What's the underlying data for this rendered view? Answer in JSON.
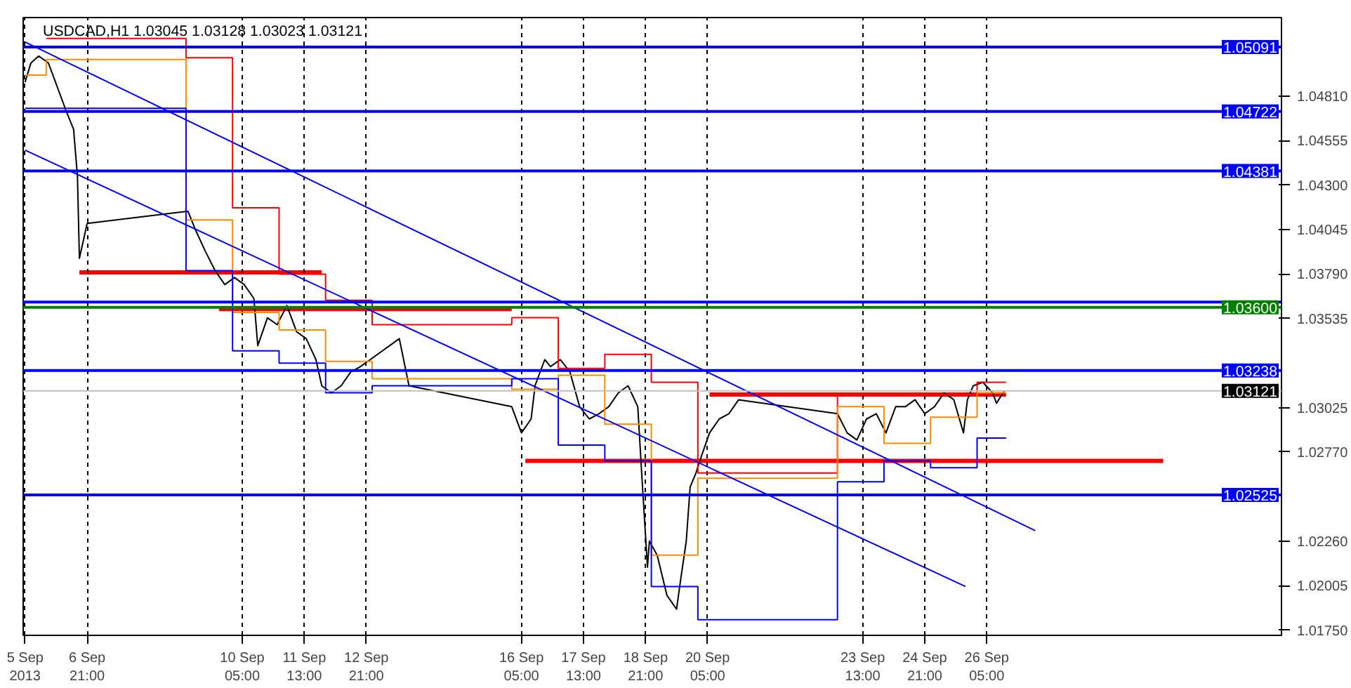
{
  "chart_data": {
    "type": "line",
    "title": "USDCAD,H1  1.03045 1.03128 1.03023 1.03121",
    "xlim": [
      "2013-09-05T12:00",
      "2013-10-02T13:00"
    ],
    "ylim": [
      1.0172,
      1.0526
    ],
    "xticks": [
      {
        "value": "2013-09-05T13:00",
        "label": "5 Sep 2013"
      },
      {
        "value": "2013-09-06T21:00",
        "label": "6 Sep 21:00"
      },
      {
        "value": "2013-09-10T05:00",
        "label": "10 Sep 05:00"
      },
      {
        "value": "2013-09-11T13:00",
        "label": "11 Sep 13:00"
      },
      {
        "value": "2013-09-12T21:00",
        "label": "12 Sep 21:00"
      },
      {
        "value": "2013-09-16T05:00",
        "label": "16 Sep 05:00"
      },
      {
        "value": "2013-09-17T13:00",
        "label": "17 Sep 13:00"
      },
      {
        "value": "2013-09-18T21:00",
        "label": "18 Sep 21:00"
      },
      {
        "value": "2013-09-20T05:00",
        "label": "20 Sep 05:00"
      },
      {
        "value": "2013-09-23T13:00",
        "label": "23 Sep 13:00"
      },
      {
        "value": "2013-09-24T21:00",
        "label": "24 Sep 21:00"
      },
      {
        "value": "2013-09-26T05:00",
        "label": "26 Sep 05:00"
      }
    ],
    "yticks": [
      {
        "value": 1.0175,
        "label": "1.01750"
      },
      1.02005,
      {
        "value": 1.0226,
        "label": "1.02260"
      },
      {
        "value": 1.0277,
        "label": "1.02770"
      },
      1.03025,
      1.03535,
      {
        "value": 1.0379,
        "label": "1.03790"
      },
      1.04045,
      {
        "value": 1.043,
        "label": "1.04300"
      },
      1.04555,
      {
        "value": 1.0481,
        "label": "1.04810"
      }
    ],
    "grid": "x",
    "series": [
      {
        "color": "#000000",
        "x": [
          "2013-09-05T13:00",
          "2013-09-05T16:00",
          "2013-09-05T20:00",
          "2013-09-06T01:00",
          "2013-09-06T06:00",
          "2013-09-06T10:00",
          "2013-09-06T14:00",
          "2013-09-06T16:00",
          "2013-09-06T17:00",
          "2013-09-06T21:00",
          "2013-09-09T01:00",
          "2013-09-09T05:00",
          "2013-09-09T10:00",
          "2013-09-09T15:00",
          "2013-09-09T20:00",
          "2013-09-10T01:00",
          "2013-09-10T06:00",
          "2013-09-10T11:00",
          "2013-09-10T13:00",
          "2013-09-10T18:00",
          "2013-09-10T23:00",
          "2013-09-11T04:00",
          "2013-09-11T09:00",
          "2013-09-11T14:00",
          "2013-09-11T19:00",
          "2013-09-11T22:00",
          "2013-09-12T03:00",
          "2013-09-12T08:00",
          "2013-09-12T13:00",
          "2013-09-12T18:00",
          "2013-09-12T23:00",
          "2013-09-13T04:00",
          "2013-09-13T09:00",
          "2013-09-13T14:00",
          "2013-09-13T19:00",
          "2013-09-16T00:00",
          "2013-09-16T05:00",
          "2013-09-16T10:00",
          "2013-09-16T12:00",
          "2013-09-16T17:00",
          "2013-09-16T20:00",
          "2013-09-17T01:00",
          "2013-09-17T06:00",
          "2013-09-17T11:00",
          "2013-09-17T16:00",
          "2013-09-17T21:00",
          "2013-09-18T02:00",
          "2013-09-18T07:00",
          "2013-09-18T12:00",
          "2013-09-18T17:00",
          "2013-09-18T19:00",
          "2013-09-18T22:00",
          "2013-09-18T23:00",
          "2013-09-19T03:00",
          "2013-09-19T08:00",
          "2013-09-19T13:00",
          "2013-09-19T15:00",
          "2013-09-19T18:00",
          "2013-09-19T20:00",
          "2013-09-19T23:00",
          "2013-09-20T01:00",
          "2013-09-20T06:00",
          "2013-09-20T11:00",
          "2013-09-20T16:00",
          "2013-09-20T21:00",
          "2013-09-23T00:00",
          "2013-09-23T05:00",
          "2013-09-23T10:00",
          "2013-09-23T15:00",
          "2013-09-23T20:00",
          "2013-09-24T01:00",
          "2013-09-24T06:00",
          "2013-09-24T11:00",
          "2013-09-24T16:00",
          "2013-09-24T21:00",
          "2013-09-25T02:00",
          "2013-09-25T07:00",
          "2013-09-25T12:00",
          "2013-09-25T17:00",
          "2013-09-25T19:00",
          "2013-09-25T22:00",
          "2013-09-26T03:00",
          "2013-09-26T08:00",
          "2013-09-26T10:00",
          "2013-09-26T14:00"
        ],
        "values": [
          1.0489,
          1.05,
          1.0504,
          1.05,
          1.0485,
          1.0473,
          1.0462,
          1.0435,
          1.0388,
          1.0408,
          1.0415,
          1.0404,
          1.0392,
          1.0381,
          1.0373,
          1.0377,
          1.0373,
          1.0365,
          1.0338,
          1.0354,
          1.035,
          1.0361,
          1.0346,
          1.0342,
          1.033,
          1.0315,
          1.0311,
          1.0315,
          1.0323,
          1.0326,
          1.033,
          1.0334,
          1.0338,
          1.0342,
          1.0315,
          1.0303,
          1.0288,
          1.0296,
          1.0315,
          1.033,
          1.0326,
          1.033,
          1.0323,
          1.0303,
          1.0296,
          1.0299,
          1.0303,
          1.0311,
          1.0315,
          1.0303,
          1.0265,
          1.0211,
          1.0226,
          1.0218,
          1.0195,
          1.0187,
          1.0203,
          1.0226,
          1.0257,
          1.0265,
          1.0272,
          1.0288,
          1.0296,
          1.0299,
          1.0307,
          1.0299,
          1.0288,
          1.0284,
          1.0296,
          1.0299,
          1.0288,
          1.0303,
          1.0303,
          1.0307,
          1.0299,
          1.0303,
          1.0311,
          1.0307,
          1.0288,
          1.0307,
          1.0315,
          1.0317,
          1.0311,
          1.0305,
          1.0312
        ]
      },
      {
        "type": "step",
        "color": "#ff0000",
        "x": [
          "2013-09-06T00:00",
          "2013-09-09T00:00",
          "2013-09-10T00:00",
          "2013-09-11T00:00",
          "2013-09-12T00:00",
          "2013-09-13T00:00",
          "2013-09-16T00:00",
          "2013-09-17T00:00",
          "2013-09-18T00:00",
          "2013-09-19T00:00",
          "2013-09-20T00:00",
          "2013-09-23T00:00",
          "2013-09-24T00:00",
          "2013-09-25T00:00",
          "2013-09-26T00:00",
          "2013-09-26T15:00"
        ],
        "values": [
          1.0514,
          1.0503,
          1.0417,
          1.0379,
          1.0364,
          1.035,
          1.0354,
          1.0325,
          1.0333,
          1.0317,
          1.0265,
          1.031,
          1.031,
          1.031,
          1.0317,
          1.0317
        ]
      },
      {
        "type": "step",
        "color": "#ff8c00",
        "x": [
          "2013-09-05T13:00",
          "2013-09-06T00:00",
          "2013-09-09T00:00",
          "2013-09-10T00:00",
          "2013-09-11T00:00",
          "2013-09-12T00:00",
          "2013-09-13T00:00",
          "2013-09-16T00:00",
          "2013-09-17T00:00",
          "2013-09-18T00:00",
          "2013-09-19T00:00",
          "2013-09-20T00:00",
          "2013-09-23T00:00",
          "2013-09-24T00:00",
          "2013-09-25T00:00",
          "2013-09-26T00:00",
          "2013-09-26T15:00"
        ],
        "values": [
          1.0493,
          1.0502,
          1.041,
          1.0357,
          1.0347,
          1.0329,
          1.0319,
          1.0313,
          1.0321,
          1.0293,
          1.0218,
          1.0262,
          1.0303,
          1.0282,
          1.0297,
          1.0311,
          1.0311
        ]
      },
      {
        "type": "step",
        "color": "#0000ff",
        "x": [
          "2013-09-05T13:00",
          "2013-09-09T00:00",
          "2013-09-10T00:00",
          "2013-09-11T00:00",
          "2013-09-12T00:00",
          "2013-09-13T00:00",
          "2013-09-16T00:00",
          "2013-09-17T00:00",
          "2013-09-18T00:00",
          "2013-09-19T00:00",
          "2013-09-20T00:00",
          "2013-09-23T00:00",
          "2013-09-24T00:00",
          "2013-09-25T00:00",
          "2013-09-26T00:00",
          "2013-09-26T15:00"
        ],
        "values": [
          1.0474,
          1.0381,
          1.0335,
          1.0328,
          1.0311,
          1.0315,
          1.0319,
          1.0281,
          1.0272,
          1.02,
          1.0181,
          1.026,
          1.0272,
          1.0268,
          1.0285,
          1.0285
        ]
      },
      {
        "color": "#ff0000",
        "x": [
          "2013-09-06T17:00",
          "2013-09-11T22:00"
        ],
        "values": [
          1.038,
          1.038
        ]
      },
      {
        "color": "#ff0000",
        "x": [
          "2013-09-09T17:00",
          "2013-09-16T00:00"
        ],
        "values": [
          1.0359,
          1.0359
        ]
      },
      {
        "color": "#ff0000",
        "x": [
          "2013-09-20T06:00",
          "2013-09-26T15:00"
        ],
        "values": [
          1.031,
          1.031
        ]
      },
      {
        "color": "#ff0000",
        "x": [
          "2013-09-16T07:00",
          "2013-09-30T00:00"
        ],
        "values": [
          1.0272,
          1.0272
        ]
      },
      {
        "color": "#0000ff",
        "x": [
          "2013-09-05T13:00",
          "2013-09-27T06:00"
        ],
        "values": [
          1.0512,
          1.0232
        ]
      },
      {
        "color": "#0000ff",
        "x": [
          "2013-09-05T13:00",
          "2013-09-25T18:00"
        ],
        "values": [
          1.045,
          1.02
        ]
      }
    ],
    "ref_lines": [
      {
        "axis": "y",
        "value": 1.05091,
        "label": "1.05091",
        "color": "#0000ff"
      },
      {
        "axis": "y",
        "value": 1.04722,
        "label": "1.04722",
        "color": "#0000ff"
      },
      {
        "axis": "y",
        "value": 1.04381,
        "label": "1.04381",
        "color": "#0000ff"
      },
      {
        "axis": "y",
        "value": 1.0363,
        "label": null,
        "color": "#0000ff"
      },
      {
        "axis": "y",
        "value": 1.036,
        "label": "1.03600",
        "color": "#008000"
      },
      {
        "axis": "y",
        "value": 1.03238,
        "label": "1.03238",
        "color": "#0000ff"
      },
      {
        "axis": "y",
        "value": 1.03121,
        "label": "1.03121",
        "color": "#c0c0c0"
      },
      {
        "axis": "y",
        "value": 1.02525,
        "label": "1.02525",
        "color": "#0000ff"
      }
    ]
  }
}
